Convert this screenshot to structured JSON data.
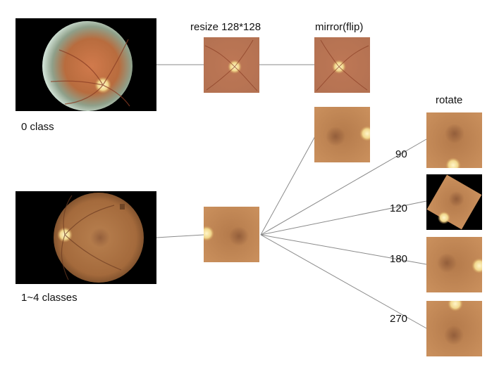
{
  "labels": {
    "class0": "0 class",
    "class1to4": "1~4 classes",
    "resize": "resize 128*128",
    "mirror": "mirror(flip)",
    "rotate": "rotate"
  },
  "angles": {
    "a90": "90",
    "a120": "120",
    "a180": "180",
    "a270": "270"
  },
  "colors": {
    "line": "#8a8a8a",
    "fundus_edge": "#a46a3c",
    "fundus_mid": "#c48a57",
    "fundus_warm": "#c98f5c",
    "optic_disc": "#f4e3a4",
    "pale_halo": "#d9e4cf",
    "background_black": "#000000"
  }
}
